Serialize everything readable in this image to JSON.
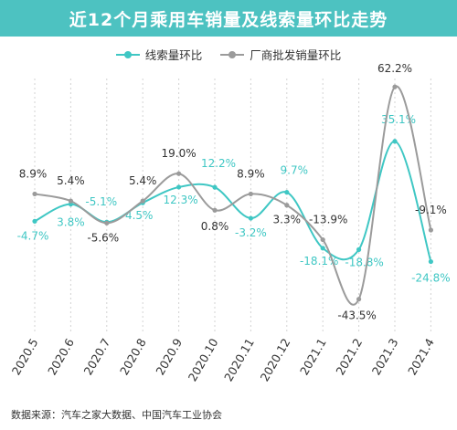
{
  "header": {
    "title": "近12个月乘用车销量及线索量环比走势"
  },
  "source": "数据来源：汽车之家大数据、中国汽车工业协会",
  "colors": {
    "teal": "#3fc7c4",
    "gray": "#9b9b9b",
    "header_bg": "#4dc2c1"
  },
  "chart_data": {
    "type": "line",
    "title": "近12个月乘用车销量及线索量环比走势",
    "categories": [
      "2020.5",
      "2020.6",
      "2020.7",
      "2020.8",
      "2020.9",
      "2020.10",
      "2020.11",
      "2020.12",
      "2021.1",
      "2021.2",
      "2021.3",
      "2021.4"
    ],
    "series": [
      {
        "name": "线索量环比",
        "color": "#3fc7c4",
        "values": [
          -4.7,
          3.8,
          -5.1,
          4.5,
          12.3,
          12.2,
          -3.2,
          9.7,
          -18.1,
          -18.8,
          35.1,
          -24.8
        ],
        "labels": [
          "-4.7%",
          "3.8%",
          "-5.1%",
          "4.5%",
          "12.3%",
          "12.2%",
          "-3.2%",
          "9.7%",
          "-18.1%",
          "-18.8%",
          "35.1%",
          "-24.8%"
        ]
      },
      {
        "name": "厂商批发销量环比",
        "color": "#9b9b9b",
        "values": [
          8.9,
          5.4,
          -5.6,
          5.4,
          19.0,
          0.8,
          8.9,
          3.3,
          -13.9,
          -43.5,
          62.2,
          -9.1
        ],
        "labels": [
          "8.9%",
          "5.4%",
          "-5.6%",
          "5.4%",
          "19.0%",
          "0.8%",
          "8.9%",
          "3.3%",
          "-13.9%",
          "-43.5%",
          "62.2%",
          "-9.1%"
        ]
      }
    ],
    "legend": "top-center",
    "grid": "vertical-dashed"
  }
}
